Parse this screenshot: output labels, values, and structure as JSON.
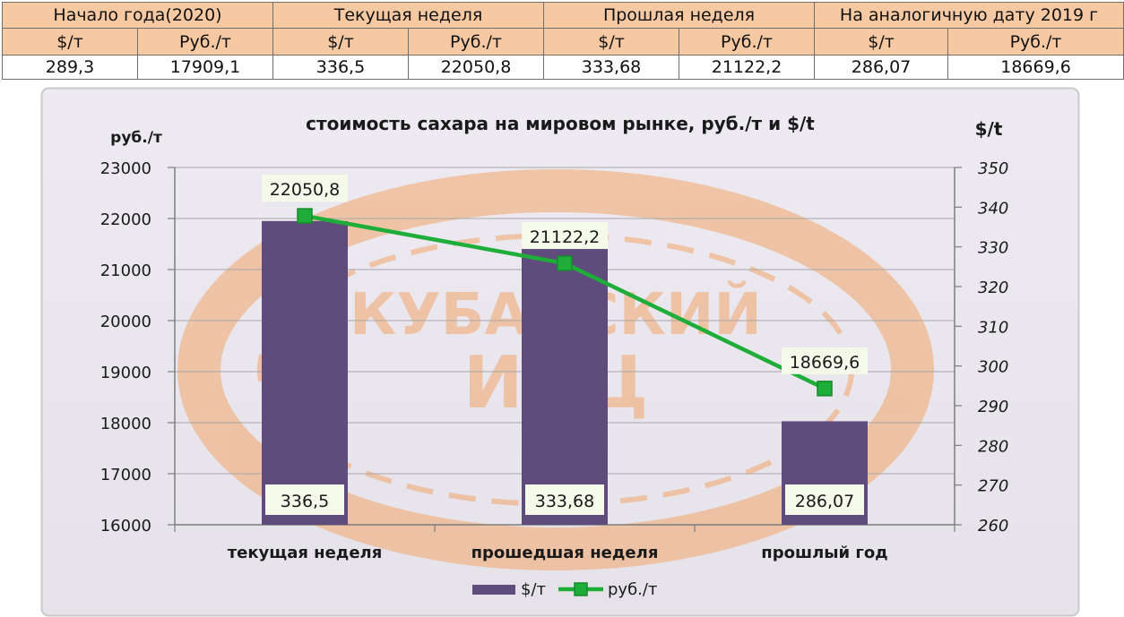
{
  "table": {
    "groups": [
      "Начало года(2020)",
      "Текущая неделя",
      "Прошлая неделя",
      "На аналогичную дату 2019 г"
    ],
    "units": [
      "$/т",
      "Руб./т",
      "$/т",
      "Руб./т",
      "$/т",
      "Руб./т",
      "$/т",
      "Руб./т"
    ],
    "values": [
      "289,3",
      "17909,1",
      "336,5",
      "22050,8",
      "333,68",
      "21122,2",
      "286,07",
      "18669,6"
    ]
  },
  "watermark": {
    "line1": "КУБАНСКИЙ",
    "line2": "ИКЦ",
    "color": "#f2a66a"
  },
  "chart_data": {
    "type": "bar",
    "title": "стоимость сахара на мировом рынке, руб./т и $/t",
    "categories": [
      "текущая  неделя",
      "прошедшая неделя",
      "прошлый год"
    ],
    "y_left_label": "руб./т",
    "y_left_ticks": [
      "23000",
      "22000",
      "21000",
      "20000",
      "19000",
      "18000",
      "17000",
      "16000"
    ],
    "y_left_range": [
      16000,
      23000
    ],
    "y_right_label": "$/t",
    "y_right_ticks": [
      "350",
      "340",
      "330",
      "320",
      "310",
      "300",
      "290",
      "280",
      "270",
      "260"
    ],
    "y_right_range": [
      260,
      350
    ],
    "series": [
      {
        "name": "$/т",
        "kind": "bar",
        "axis": "right",
        "color": "#5f4b7c",
        "values": [
          336.5,
          333.68,
          286.07
        ],
        "labels": [
          "336,5",
          "333,68",
          "286,07"
        ]
      },
      {
        "name": "руб./т",
        "kind": "line",
        "axis": "left",
        "color": "#1fad3a",
        "values": [
          22050.8,
          21122.2,
          18669.6
        ],
        "labels": [
          "22050,8",
          "21122,2",
          "18669,6"
        ]
      }
    ],
    "grid": true,
    "legend": "bottom-center",
    "colors": {
      "panel_bg": "#ebe7ef",
      "gridline": "#a7a7a7",
      "label_box_bg": "#f4f9ea"
    }
  }
}
